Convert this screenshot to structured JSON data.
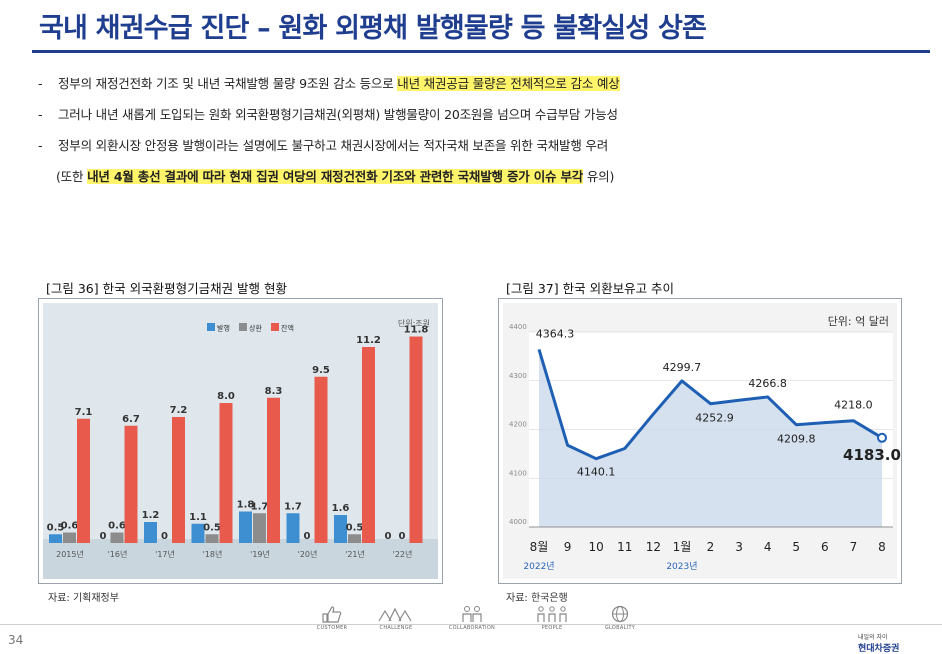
{
  "title": "국내 채권수급 진단 – 원화 외평채 발행물량 등 불확실성 상존",
  "bullets": [
    {
      "dash": "-",
      "text": "정부의 재정건전화 기조 및 내년 국채발행 물량 9조원 감소 등으로 ",
      "highlight": "내년 채권공급 물량은 전체적으로 감소 예상"
    },
    {
      "dash": "-",
      "text": "그러나 내년 새롭게 도입되는 원화 외국환평형기금채권(외평채) 발행물량이 20조원을 넘으며 수급부담 가능성"
    },
    {
      "dash": "-",
      "text": "정부의 외환시장 안정용 발행이라는 설명에도 불구하고 채권시장에서는 적자국채 보존을 위한 국채발행 우려"
    }
  ],
  "note": {
    "prefix": "(또한 ",
    "highlight": "내년 4월 총선 결과에 따라 현재 집권 여당의 재정건전화 기조와 관련한 국채발행 증가 이슈 부각",
    "suffix": " 유의)"
  },
  "figure36": {
    "title": "[그림 36] 한국 외국환평형기금채권 발행 현황",
    "source": "자료: 기획재정부"
  },
  "figure37": {
    "title": "[그림 37] 한국 외환보유고 추이",
    "source": "자료: 한국은행"
  },
  "chart_data": [
    {
      "type": "bar",
      "unit": "단위:조원",
      "categories": [
        "2015년",
        "'16년",
        "'17년",
        "'18년",
        "'19년",
        "'20년",
        "'21년",
        "'22년"
      ],
      "series": [
        {
          "name": "발행",
          "color": "#3d8fd1",
          "values": [
            0.5,
            0,
            1.2,
            1.1,
            1.8,
            1.7,
            1.6,
            0
          ]
        },
        {
          "name": "상환",
          "color": "#8c8c8c",
          "values": [
            0.6,
            0.6,
            0,
            0.5,
            1.7,
            0,
            0.5,
            0
          ]
        },
        {
          "name": "잔액",
          "color": "#e85a4c",
          "values": [
            7.1,
            6.7,
            7.2,
            8.0,
            8.3,
            9.5,
            11.2,
            11.8
          ]
        }
      ],
      "ylim": [
        0,
        12
      ]
    },
    {
      "type": "line",
      "unit": "단위: 억 달러",
      "x": [
        "8월",
        "9",
        "10",
        "11",
        "12",
        "1월",
        "2",
        "3",
        "4",
        "5",
        "6",
        "7",
        "8"
      ],
      "year_labels": [
        {
          "at": "8월",
          "text": "2022년"
        },
        {
          "at": "1월",
          "text": "2023년"
        }
      ],
      "y": [
        4364.3,
        4167.7,
        4140.1,
        4161.0,
        4231.6,
        4299.7,
        4252.9,
        4260.0,
        4266.8,
        4209.8,
        4214.0,
        4218.0,
        4183.0
      ],
      "labeled_points": [
        {
          "x": "8월",
          "label": "4364.3"
        },
        {
          "x": "10",
          "label": "4140.1"
        },
        {
          "x": "1월",
          "label": "4299.7"
        },
        {
          "x": "2",
          "label": "4252.9"
        },
        {
          "x": "4",
          "label": "4266.8"
        },
        {
          "x": "5",
          "label": "4209.8"
        },
        {
          "x": "7",
          "label": "4218.0"
        },
        {
          "x": "8",
          "label": "4183.0"
        }
      ],
      "yticks": [
        4000,
        4100,
        4200,
        4300,
        4400
      ],
      "ylim": [
        4000,
        4400
      ]
    }
  ],
  "footer": {
    "page": "34",
    "items": [
      "CUSTOMER",
      "CHALLENGE",
      "COLLABORATION",
      "PEOPLE",
      "GLOBALITY"
    ],
    "brand_small": "내일의 자이",
    "brand_name": "현대차증권"
  },
  "colors": {
    "title": "#1f3e8f",
    "highlight": "#fff46a",
    "line": "#1e5fb4"
  }
}
